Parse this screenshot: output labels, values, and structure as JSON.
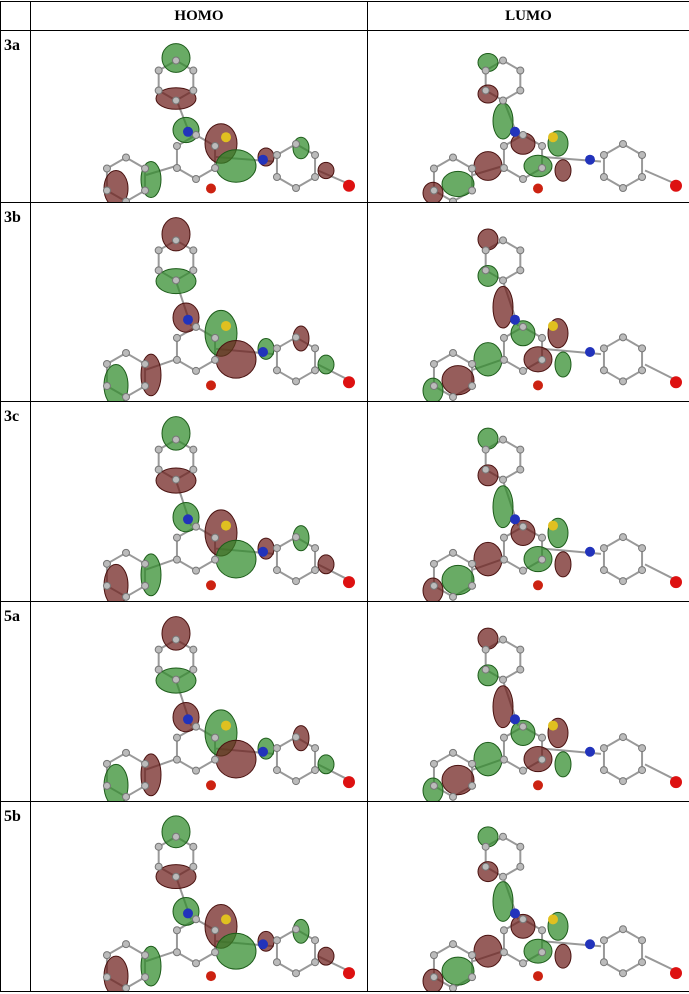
{
  "table": {
    "columns": [
      "HOMO",
      "LUMO"
    ],
    "rows": [
      "3a",
      "3b",
      "3c",
      "5a",
      "5b"
    ]
  }
}
